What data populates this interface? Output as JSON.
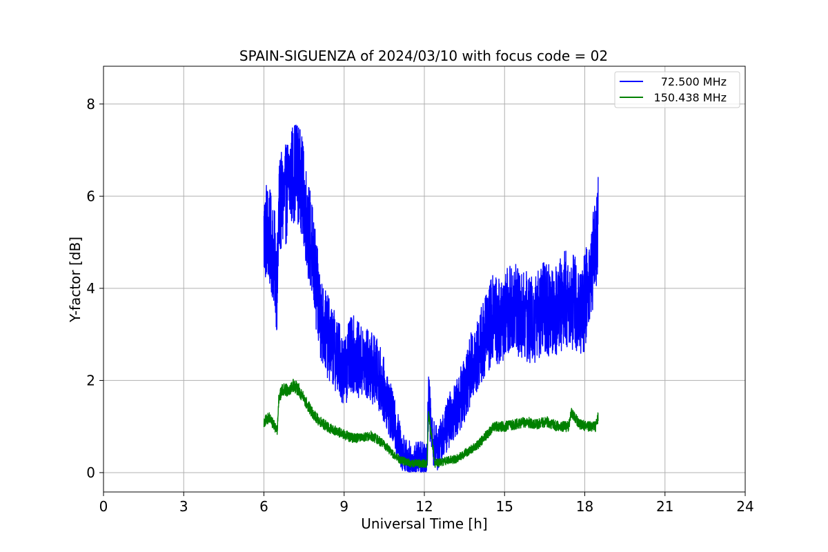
{
  "chart_data": {
    "type": "line",
    "title": "SPAIN-SIGUENZA of 2024/03/10 with focus code = 02",
    "xlabel": "Universal Time [h]",
    "ylabel": "Y-factor [dB]",
    "xlim": [
      0,
      24
    ],
    "ylim": [
      -0.42,
      8.82
    ],
    "xticks": [
      0,
      3,
      6,
      9,
      12,
      15,
      18,
      21,
      24
    ],
    "xtick_labels": [
      "0",
      "3",
      "6",
      "9",
      "12",
      "15",
      "18",
      "21",
      "24"
    ],
    "yticks": [
      0,
      2,
      4,
      6,
      8
    ],
    "ytick_labels": [
      "0",
      "2",
      "4",
      "6",
      "8"
    ],
    "grid": true,
    "legend_position": "top-right",
    "series": [
      {
        "name": "72.500 MHz",
        "color": "#0000ff",
        "noise_dB": 1.1,
        "x": [
          6.0,
          6.1,
          6.2,
          6.3,
          6.4,
          6.5,
          6.55,
          6.6,
          6.8,
          7.0,
          7.2,
          7.4,
          7.6,
          7.8,
          8.0,
          8.2,
          8.5,
          8.8,
          9.0,
          9.3,
          9.6,
          10.0,
          10.3,
          10.6,
          10.9,
          11.1,
          11.3,
          11.6,
          11.9,
          12.1,
          12.15,
          12.3,
          12.5,
          12.7,
          12.9,
          13.2,
          13.5,
          13.7,
          14.0,
          14.3,
          14.6,
          14.9,
          15.2,
          15.5,
          15.8,
          16.1,
          16.4,
          16.7,
          17.0,
          17.3,
          17.6,
          17.9,
          18.2,
          18.4,
          18.5
        ],
        "y": [
          5.1,
          5.3,
          5.1,
          4.9,
          4.6,
          4.0,
          5.5,
          5.8,
          6.0,
          6.4,
          6.6,
          6.3,
          5.5,
          4.8,
          3.8,
          3.2,
          2.8,
          2.5,
          2.2,
          2.6,
          2.4,
          2.3,
          2.1,
          1.6,
          1.0,
          0.6,
          0.3,
          0.2,
          0.3,
          0.4,
          1.6,
          0.7,
          0.5,
          0.8,
          1.1,
          1.4,
          1.8,
          2.2,
          2.6,
          3.0,
          3.4,
          3.2,
          3.6,
          3.5,
          3.4,
          3.3,
          3.6,
          3.5,
          3.6,
          3.8,
          3.7,
          3.5,
          4.2,
          5.0,
          5.4
        ]
      },
      {
        "name": "150.438 MHz",
        "color": "#008000",
        "noise_dB": 0.22,
        "x": [
          6.0,
          6.2,
          6.4,
          6.5,
          6.55,
          6.7,
          6.9,
          7.1,
          7.3,
          7.5,
          7.8,
          8.1,
          8.5,
          8.9,
          9.3,
          9.7,
          10.0,
          10.3,
          10.6,
          10.9,
          11.2,
          11.5,
          11.8,
          12.1,
          12.15,
          12.4,
          12.8,
          13.2,
          13.6,
          14.0,
          14.3,
          14.6,
          15.0,
          15.4,
          15.8,
          16.2,
          16.6,
          17.0,
          17.4,
          17.5,
          17.8,
          18.1,
          18.4,
          18.5
        ],
        "y": [
          1.1,
          1.2,
          1.0,
          0.9,
          1.6,
          1.8,
          1.8,
          1.9,
          1.8,
          1.6,
          1.3,
          1.1,
          0.95,
          0.85,
          0.75,
          0.75,
          0.8,
          0.7,
          0.55,
          0.35,
          0.25,
          0.2,
          0.2,
          0.2,
          1.3,
          0.2,
          0.25,
          0.3,
          0.45,
          0.6,
          0.8,
          1.0,
          1.0,
          1.05,
          1.1,
          1.05,
          1.1,
          1.0,
          1.0,
          1.3,
          1.05,
          1.0,
          1.0,
          1.2
        ]
      }
    ]
  }
}
